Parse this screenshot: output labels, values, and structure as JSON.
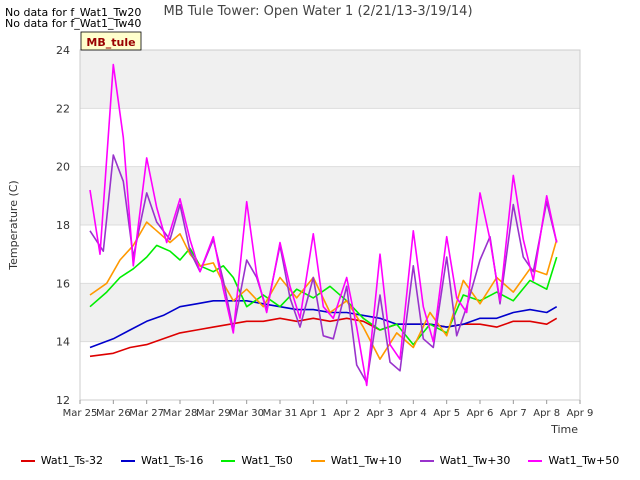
{
  "notices": [
    "No data for f_Wat1_Tw20",
    "No data for f_Wat1_Tw40"
  ],
  "site_tag": "MB_tule",
  "chart_data": {
    "type": "line",
    "title": "MB Tule Tower: Open Water 1 (2/21/13-3/19/14)",
    "xlabel": "Time",
    "ylabel": "Temperature (C)",
    "x_ticks": [
      "Mar 25",
      "Mar 26",
      "Mar 27",
      "Mar 28",
      "Mar 29",
      "Mar 30",
      "Mar 31",
      "Apr 1",
      "Apr 2",
      "Apr 3",
      "Apr 4",
      "Apr 5",
      "Apr 6",
      "Apr 7",
      "Apr 8",
      "Apr 9"
    ],
    "xlim": [
      0,
      15
    ],
    "ylim": [
      12,
      24
    ],
    "y_ticks": [
      12,
      14,
      16,
      18,
      20,
      22,
      24
    ],
    "grid": true,
    "legend_position": "bottom",
    "series": [
      {
        "name": "Wat1_Ts-32",
        "color": "#dd0000",
        "x": [
          0.3,
          1,
          1.5,
          2,
          2.5,
          3,
          3.5,
          4,
          4.5,
          5,
          5.5,
          6,
          6.5,
          7,
          7.5,
          8,
          8.5,
          9,
          9.5,
          10,
          10.5,
          11,
          11.5,
          12,
          12.5,
          13,
          13.5,
          14,
          14.3
        ],
        "y": [
          13.5,
          13.6,
          13.8,
          13.9,
          14.1,
          14.3,
          14.4,
          14.5,
          14.6,
          14.7,
          14.7,
          14.8,
          14.7,
          14.8,
          14.7,
          14.8,
          14.7,
          14.4,
          14.6,
          14.6,
          14.6,
          14.5,
          14.6,
          14.6,
          14.5,
          14.7,
          14.7,
          14.6,
          14.8
        ]
      },
      {
        "name": "Wat1_Ts-16",
        "color": "#0000cc",
        "x": [
          0.3,
          1,
          1.5,
          2,
          2.5,
          3,
          3.5,
          4,
          4.5,
          5,
          5.5,
          6,
          6.5,
          7,
          7.5,
          8,
          8.5,
          9,
          9.5,
          10,
          10.5,
          11,
          11.5,
          12,
          12.5,
          13,
          13.5,
          14,
          14.3
        ],
        "y": [
          13.8,
          14.1,
          14.4,
          14.7,
          14.9,
          15.2,
          15.3,
          15.4,
          15.4,
          15.4,
          15.3,
          15.2,
          15.1,
          15.1,
          15.0,
          15.0,
          14.9,
          14.8,
          14.6,
          14.6,
          14.6,
          14.5,
          14.6,
          14.8,
          14.8,
          15.0,
          15.1,
          15.0,
          15.2
        ]
      },
      {
        "name": "Wat1_Ts0",
        "color": "#00ee00",
        "x": [
          0.3,
          0.8,
          1.2,
          1.6,
          2,
          2.3,
          2.7,
          3,
          3.3,
          3.6,
          4,
          4.3,
          4.6,
          5,
          5.5,
          6,
          6.5,
          7,
          7.5,
          8,
          8.5,
          9,
          9.5,
          10,
          10.5,
          11,
          11.5,
          12,
          12.5,
          13,
          13.5,
          14,
          14.3
        ],
        "y": [
          15.2,
          15.7,
          16.2,
          16.5,
          16.9,
          17.3,
          17.1,
          16.8,
          17.2,
          16.6,
          16.4,
          16.6,
          16.2,
          15.2,
          15.6,
          15.2,
          15.8,
          15.5,
          15.9,
          15.4,
          14.8,
          14.4,
          14.6,
          13.9,
          14.6,
          14.3,
          15.6,
          15.4,
          15.7,
          15.4,
          16.1,
          15.8,
          16.9
        ]
      },
      {
        "name": "Wat1_Tw+10",
        "color": "#ff9900",
        "x": [
          0.3,
          0.8,
          1.2,
          1.6,
          2,
          2.3,
          2.7,
          3,
          3.3,
          3.6,
          4,
          4.3,
          4.6,
          5,
          5.5,
          6,
          6.5,
          7,
          7.5,
          8,
          8.5,
          9,
          9.5,
          10,
          10.5,
          11,
          11.5,
          12,
          12.5,
          13,
          13.5,
          14,
          14.3
        ],
        "y": [
          15.6,
          16.0,
          16.8,
          17.3,
          18.1,
          17.8,
          17.4,
          17.7,
          17.0,
          16.6,
          16.7,
          16.0,
          15.4,
          15.8,
          15.2,
          16.2,
          15.5,
          16.2,
          15.0,
          15.4,
          14.5,
          13.4,
          14.3,
          13.8,
          15.0,
          14.2,
          16.1,
          15.3,
          16.2,
          15.7,
          16.5,
          16.3,
          17.5
        ]
      },
      {
        "name": "Wat1_Tw+30",
        "color": "#9933cc",
        "x": [
          0.3,
          0.7,
          1,
          1.3,
          1.6,
          2,
          2.3,
          2.7,
          3,
          3.3,
          3.6,
          4,
          4.3,
          4.6,
          5,
          5.3,
          5.6,
          6,
          6.3,
          6.6,
          7,
          7.3,
          7.6,
          8,
          8.3,
          8.6,
          9,
          9.3,
          9.6,
          10,
          10.3,
          10.6,
          11,
          11.3,
          11.6,
          12,
          12.3,
          12.6,
          13,
          13.3,
          13.6,
          14,
          14.3
        ],
        "y": [
          17.8,
          17.1,
          20.4,
          19.5,
          16.9,
          19.1,
          18.1,
          17.5,
          18.7,
          17.1,
          16.4,
          17.5,
          16.1,
          14.4,
          16.8,
          16.2,
          15.1,
          17.3,
          15.5,
          14.5,
          16.2,
          14.2,
          14.1,
          15.9,
          13.2,
          12.6,
          15.6,
          13.3,
          13.0,
          16.6,
          14.1,
          13.8,
          16.9,
          14.2,
          15.2,
          16.8,
          17.6,
          15.3,
          18.7,
          16.9,
          16.4,
          18.8,
          17.4
        ]
      },
      {
        "name": "Wat1_Tw+50",
        "color": "#ff00ff",
        "x": [
          0.3,
          0.6,
          1,
          1.3,
          1.6,
          2,
          2.3,
          2.6,
          3,
          3.3,
          3.6,
          4,
          4.3,
          4.6,
          5,
          5.3,
          5.6,
          6,
          6.3,
          6.6,
          7,
          7.3,
          7.6,
          8,
          8.3,
          8.6,
          9,
          9.3,
          9.6,
          10,
          10.3,
          10.6,
          11,
          11.3,
          11.6,
          12,
          12.3,
          12.6,
          13,
          13.3,
          13.6,
          14,
          14.3
        ],
        "y": [
          19.2,
          17.0,
          23.5,
          21.0,
          16.6,
          20.3,
          18.6,
          17.4,
          18.9,
          17.5,
          16.4,
          17.6,
          15.8,
          14.3,
          18.8,
          16.3,
          15.0,
          17.4,
          15.9,
          14.8,
          17.7,
          15.2,
          14.8,
          16.2,
          14.5,
          12.5,
          17.0,
          13.9,
          13.4,
          17.8,
          15.2,
          14.0,
          17.6,
          15.5,
          15.0,
          19.1,
          17.5,
          15.4,
          19.7,
          17.5,
          16.1,
          19.0,
          17.4
        ]
      }
    ]
  }
}
